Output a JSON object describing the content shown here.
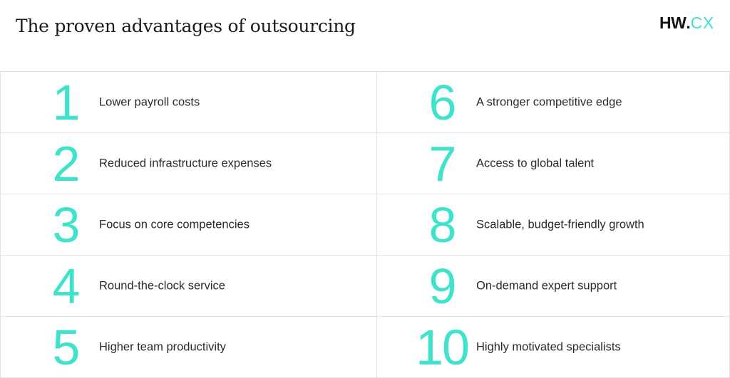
{
  "header": {
    "title": "The proven advantages of outsourcing"
  },
  "logo": {
    "brand": "HW",
    "dot": ".",
    "suffix": "CX"
  },
  "colors": {
    "accent": "#3fe3cc",
    "text": "#2a2a2a",
    "title": "#1c1c1c",
    "logo_dark": "#141414",
    "grid_line": "#e3e3e3"
  },
  "items": [
    {
      "number": "1",
      "label": "Lower payroll costs"
    },
    {
      "number": "2",
      "label": "Reduced infrastructure expenses"
    },
    {
      "number": "3",
      "label": "Focus on core competencies"
    },
    {
      "number": "4",
      "label": "Round-the-clock service"
    },
    {
      "number": "5",
      "label": "Higher team productivity"
    },
    {
      "number": "6",
      "label": "A stronger competitive edge"
    },
    {
      "number": "7",
      "label": "Access to global talent"
    },
    {
      "number": "8",
      "label": "Scalable, budget-friendly growth"
    },
    {
      "number": "9",
      "label": "On-demand expert support"
    },
    {
      "number": "10",
      "label": "Highly motivated specialists"
    }
  ]
}
